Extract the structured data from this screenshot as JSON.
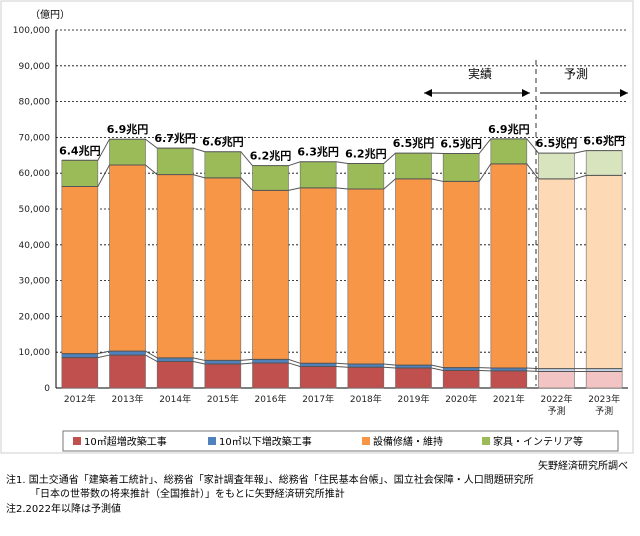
{
  "chart_data": {
    "type": "bar",
    "stacked": true,
    "unit_label": "（億円）",
    "ylim": [
      0,
      100000
    ],
    "y_ticks": [
      0,
      10000,
      20000,
      30000,
      40000,
      50000,
      60000,
      70000,
      80000,
      90000,
      100000
    ],
    "y_tick_labels": [
      "0",
      "10,000",
      "20,000",
      "30,000",
      "40,000",
      "50,000",
      "60,000",
      "70,000",
      "80,000",
      "90,000",
      "100,000"
    ],
    "grid": true,
    "categories": [
      "2012年",
      "2013年",
      "2014年",
      "2015年",
      "2016年",
      "2017年",
      "2018年",
      "2019年",
      "2020年",
      "2021年",
      "2022年",
      "2023年"
    ],
    "category_sublabels": [
      "",
      "",
      "",
      "",
      "",
      "",
      "",
      "",
      "",
      "",
      "予測",
      "予測"
    ],
    "forecast_from_index": 10,
    "series": [
      {
        "name": "10㎡超増改築工事",
        "color": "#c0504d",
        "forecast_color": "#f2c4c4",
        "values": [
          8500,
          9200,
          7400,
          6700,
          7000,
          6000,
          5800,
          5600,
          4900,
          4800,
          4600,
          4600
        ]
      },
      {
        "name": "10㎡以下増改築工事",
        "color": "#4f81bd",
        "forecast_color": "#c5d3e8",
        "values": [
          1100,
          1100,
          1000,
          1000,
          1000,
          900,
          900,
          800,
          800,
          800,
          800,
          800
        ]
      },
      {
        "name": "設備修繕・維持",
        "color": "#f79646",
        "forecast_color": "#fdd9b5",
        "values": [
          46700,
          52000,
          51200,
          51000,
          47200,
          49000,
          48900,
          52000,
          52000,
          57000,
          53000,
          54000
        ]
      },
      {
        "name": "家具・インテリア等",
        "color": "#9bbb59",
        "forecast_color": "#d7e4bd",
        "values": [
          7300,
          7200,
          7400,
          7300,
          6900,
          7300,
          7100,
          7200,
          7800,
          7000,
          7200,
          6900
        ]
      }
    ],
    "totals": [
      "6.4兆円",
      "6.9兆円",
      "6.7兆円",
      "6.6兆円",
      "6.2兆円",
      "6.3兆円",
      "6.2兆円",
      "6.5兆円",
      "6.5兆円",
      "6.9兆円",
      "6.5兆円",
      "6.6兆円"
    ],
    "annotations": {
      "actual": "実績",
      "forecast": "予測"
    },
    "legend_position": "bottom"
  },
  "source": "矢野経済研究所調べ",
  "notes": [
    "注1. 国土交通省「建築着工統計」、総務省「家計調査年報」、総務省「住民基本台帳」、国立社会保障・人口問題研究所",
    "「日本の世帯数の将来推計（全国推計）」をもとに矢野経済研究所推計",
    "注2.2022年以降は予測値"
  ]
}
